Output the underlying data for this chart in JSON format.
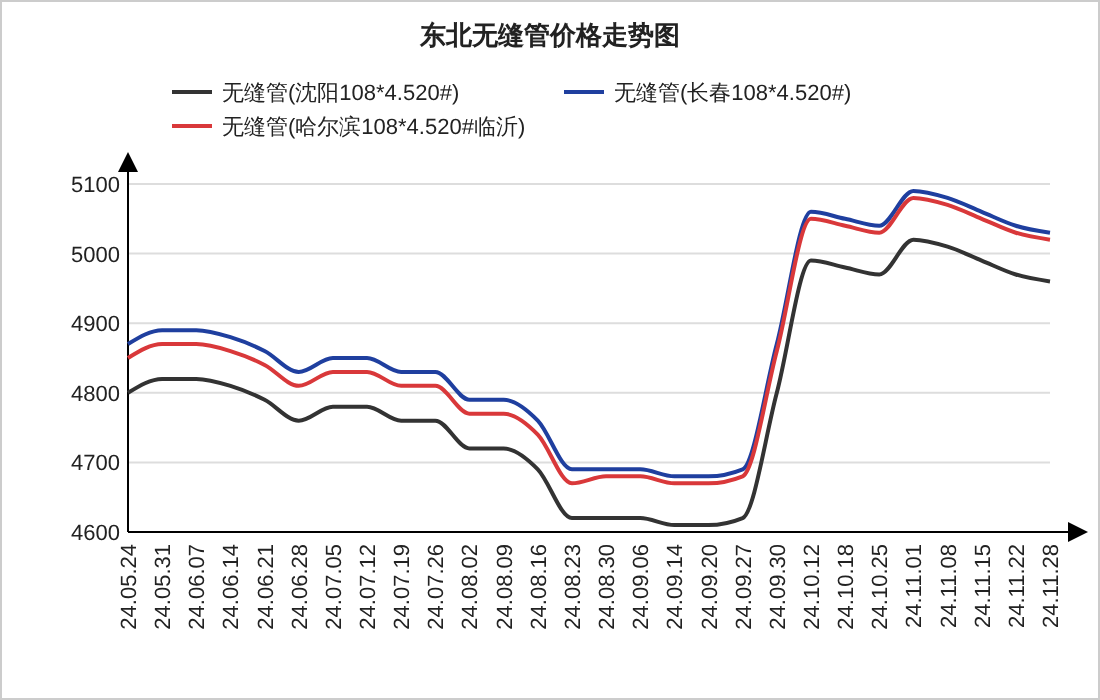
{
  "chart_data": {
    "type": "line",
    "title": "东北无缝管价格走势图",
    "categories": [
      "24.05.24",
      "24.05.31",
      "24.06.07",
      "24.06.14",
      "24.06.21",
      "24.06.28",
      "24.07.05",
      "24.07.12",
      "24.07.19",
      "24.07.26",
      "24.08.02",
      "24.08.09",
      "24.08.16",
      "24.08.23",
      "24.08.30",
      "24.09.06",
      "24.09.14",
      "24.09.20",
      "24.09.27",
      "24.09.30",
      "24.10.12",
      "24.10.18",
      "24.10.25",
      "24.11.01",
      "24.11.08",
      "24.11.15",
      "24.11.22",
      "24.11.28"
    ],
    "series": [
      {
        "name": "无缝管(沈阳108*4.520#)",
        "color": "#333333",
        "values": [
          4800,
          4820,
          4820,
          4810,
          4790,
          4760,
          4780,
          4780,
          4760,
          4760,
          4720,
          4720,
          4690,
          4620,
          4620,
          4620,
          4610,
          4610,
          4620,
          4800,
          4990,
          4980,
          4970,
          5020,
          5010,
          4990,
          4970,
          4960
        ]
      },
      {
        "name": "无缝管(长春108*4.520#)",
        "color": "#1f3f9f",
        "values": [
          4870,
          4890,
          4890,
          4880,
          4860,
          4830,
          4850,
          4850,
          4830,
          4830,
          4790,
          4790,
          4760,
          4690,
          4690,
          4690,
          4680,
          4680,
          4690,
          4870,
          5060,
          5050,
          5040,
          5090,
          5080,
          5060,
          5040,
          5030
        ]
      },
      {
        "name": "无缝管(哈尔滨108*4.520#临沂)",
        "color": "#d9383a",
        "values": [
          4850,
          4870,
          4870,
          4860,
          4840,
          4810,
          4830,
          4830,
          4810,
          4810,
          4770,
          4770,
          4740,
          4670,
          4680,
          4680,
          4670,
          4670,
          4680,
          4860,
          5050,
          5040,
          5030,
          5080,
          5070,
          5050,
          5030,
          5020
        ]
      }
    ],
    "ylim": [
      4600,
      5100
    ],
    "yticks": [
      4600,
      4700,
      4800,
      4900,
      5000,
      5100
    ],
    "grid": "y",
    "legend": "top",
    "marker": "none",
    "line_style": "solid"
  }
}
